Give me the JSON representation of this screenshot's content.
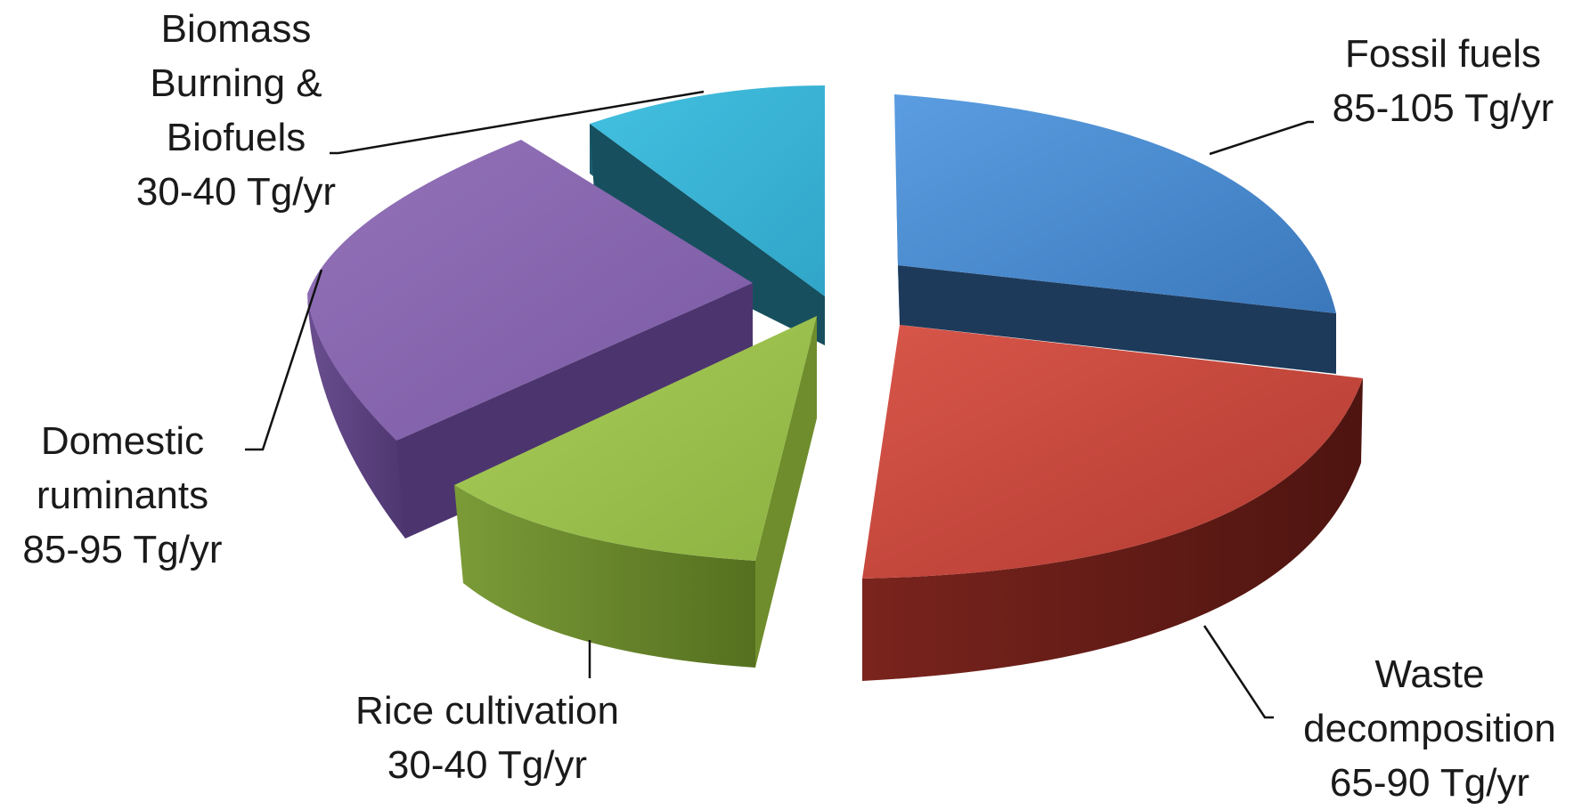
{
  "chart_data": {
    "type": "pie",
    "title": "",
    "slices": [
      {
        "key": "fossil",
        "lines": [
          "Fossil fuels",
          "85-105 Tg/yr"
        ],
        "range": [
          85,
          105
        ],
        "color": "#4a8fd4"
      },
      {
        "key": "waste",
        "lines": [
          "Waste",
          "decomposition",
          "65-90 Tg/yr"
        ],
        "range": [
          65,
          90
        ],
        "color": "#cf4b3f"
      },
      {
        "key": "rice",
        "lines": [
          "Rice cultivation",
          "30-40 Tg/yr"
        ],
        "range": [
          30,
          40
        ],
        "color": "#9cc24d"
      },
      {
        "key": "ruminants",
        "lines": [
          "Domestic",
          "ruminants",
          "85-95 Tg/yr"
        ],
        "range": [
          85,
          95
        ],
        "color": "#8b67b1"
      },
      {
        "key": "biomass",
        "lines": [
          "Biomass",
          "Burning &",
          "Biofuels",
          "30-40 Tg/yr"
        ],
        "range": [
          30,
          40
        ],
        "color": "#3cb5d6"
      }
    ],
    "style": "3d-exploded-pie",
    "legend": "none"
  }
}
